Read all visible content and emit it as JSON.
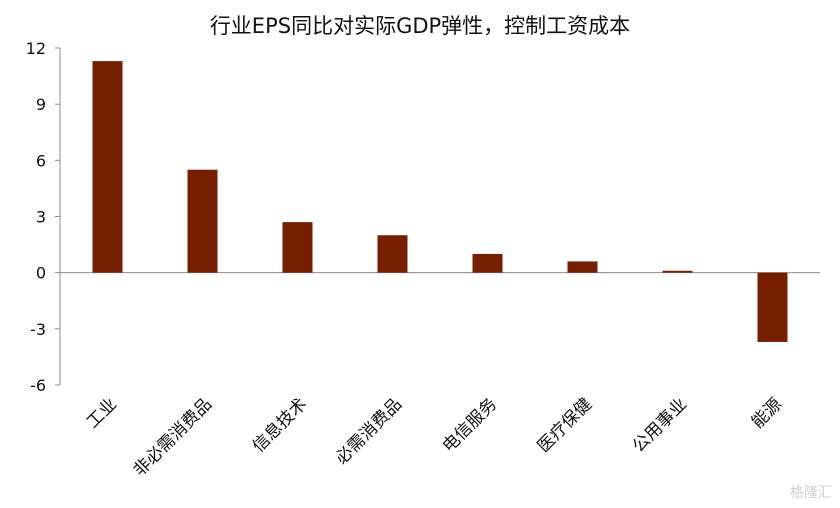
{
  "chart_data": {
    "type": "bar",
    "title": "行业EPS同比对实际GDP弹性，控制工资成本",
    "categories": [
      "工业",
      "非必需消费品",
      "信息技术",
      "必需消费品",
      "电信服务",
      "医疗保健",
      "公用事业",
      "能源"
    ],
    "values": [
      11.3,
      5.5,
      2.7,
      2.0,
      1.0,
      0.6,
      0.1,
      -3.7
    ],
    "ylim": [
      -6,
      12
    ],
    "yticks": [
      12,
      9,
      6,
      3,
      0,
      -3,
      -6
    ],
    "xlabel": "",
    "ylabel": "",
    "bar_color": "#761f00",
    "grid": false
  },
  "watermark": "格隆汇"
}
